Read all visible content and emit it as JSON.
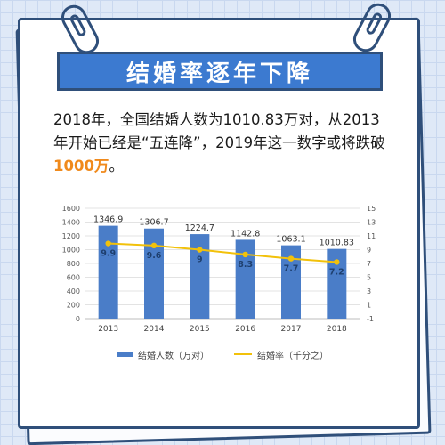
{
  "banner": {
    "title": "结婚率逐年下降"
  },
  "intro": {
    "text": "2018年，全国结婚人数为1010.83万对，从2013年开始已经是“五连降”，2019年这一数字或将跌破",
    "highlight": "1000万",
    "tail": "。"
  },
  "colors": {
    "bar": "#4a7dc8",
    "line": "#f2c10a",
    "accent": "#f08a1c",
    "banner": "#3c7ad0"
  },
  "chart_data": {
    "type": "bar",
    "categories": [
      "2013",
      "2014",
      "2015",
      "2016",
      "2017",
      "2018"
    ],
    "series": [
      {
        "name": "结婚人数（万对）",
        "type": "bar",
        "axis": "left",
        "values": [
          1346.9,
          1306.7,
          1224.7,
          1142.8,
          1063.1,
          1010.83
        ],
        "labels": [
          "1346.9",
          "1306.7",
          "1224.7",
          "1142.8",
          "1063.1",
          "1010.83"
        ]
      },
      {
        "name": "结婚率（千分之）",
        "type": "line",
        "axis": "right",
        "values": [
          9.9,
          9.6,
          9,
          8.3,
          7.7,
          7.2
        ],
        "labels": [
          "9.9",
          "9.6",
          "9",
          "8.3",
          "7.7",
          "7.2"
        ]
      }
    ],
    "yleft": {
      "ylim": [
        0,
        1600
      ],
      "ticks": [
        0,
        200,
        400,
        600,
        800,
        1000,
        1200,
        1400,
        1600
      ]
    },
    "yright": {
      "ylim": [
        -1,
        15
      ],
      "ticks": [
        -1,
        1,
        3,
        5,
        7,
        9,
        11,
        13,
        15
      ]
    },
    "grid": true,
    "legend": "bottom"
  }
}
